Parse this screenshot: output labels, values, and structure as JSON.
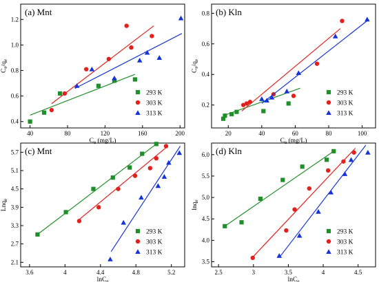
{
  "chart_data": [
    {
      "type": "scatter",
      "title": "(a) Mnt",
      "xlabel": "Ce (mg/L)",
      "ylabel": "Ce/qe",
      "xlim": [
        30,
        205
      ],
      "ylim": [
        0.35,
        1.32
      ],
      "xticks": [
        40,
        80,
        120,
        160,
        200
      ],
      "yticks": [
        0.4,
        0.6,
        0.8,
        1.0,
        1.2
      ],
      "ytick_format": "1",
      "legend_position": "bottom-right",
      "series": [
        {
          "name": "293 K",
          "color": "#1f8f2a",
          "marker": "square",
          "points": [
            [
              40,
              0.4
            ],
            [
              55,
              0.47
            ],
            [
              72,
              0.62
            ],
            [
              113,
              0.68
            ],
            [
              130,
              0.72
            ],
            [
              152,
              0.73
            ]
          ],
          "fit": [
            [
              40,
              0.45
            ],
            [
              152,
              0.77
            ]
          ]
        },
        {
          "name": "303 K",
          "color": "#e2211c",
          "marker": "circle",
          "points": [
            [
              63,
              0.49
            ],
            [
              77,
              0.62
            ],
            [
              100,
              0.81
            ],
            [
              124,
              0.89
            ],
            [
              143,
              1.15
            ],
            [
              148,
              0.98
            ],
            [
              170,
              1.07
            ]
          ],
          "fit": [
            [
              63,
              0.54
            ],
            [
              172,
              1.15
            ]
          ]
        },
        {
          "name": "313 K",
          "color": "#1533d8",
          "marker": "triangle",
          "points": [
            [
              90,
              0.68
            ],
            [
              106,
              0.81
            ],
            [
              130,
              0.74
            ],
            [
              157,
              0.88
            ],
            [
              165,
              0.94
            ],
            [
              178,
              0.9
            ],
            [
              201,
              1.21
            ]
          ],
          "fit": [
            [
              88,
              0.66
            ],
            [
              202,
              1.09
            ]
          ]
        }
      ]
    },
    {
      "type": "scatter",
      "title": "(b) Kln",
      "xlabel": "Ce (mg/L)",
      "ylabel": "Ce/qe",
      "xlim": [
        10,
        108
      ],
      "ylim": [
        0.05,
        0.86
      ],
      "xticks": [
        20,
        40,
        60,
        80,
        100
      ],
      "yticks": [
        0.2,
        0.4,
        0.6,
        0.8
      ],
      "ytick_format": "1",
      "legend_position": "bottom-right",
      "series": [
        {
          "name": "293 K",
          "color": "#1f8f2a",
          "marker": "square",
          "points": [
            [
              17,
              0.11
            ],
            [
              18,
              0.13
            ],
            [
              22,
              0.14
            ],
            [
              25,
              0.155
            ],
            [
              41,
              0.16
            ],
            [
              56,
              0.21
            ]
          ],
          "fit": [
            [
              17,
              0.13
            ],
            [
              63,
              0.31
            ]
          ]
        },
        {
          "name": "303 K",
          "color": "#e2211c",
          "marker": "circle",
          "points": [
            [
              29,
              0.2
            ],
            [
              31,
              0.21
            ],
            [
              33,
              0.22
            ],
            [
              47,
              0.27
            ],
            [
              59,
              0.26
            ],
            [
              73,
              0.47
            ],
            [
              88,
              0.75
            ]
          ],
          "fit": [
            [
              28,
              0.16
            ],
            [
              87,
              0.7
            ]
          ]
        },
        {
          "name": "313 K",
          "color": "#1533d8",
          "marker": "triangle",
          "points": [
            [
              40,
              0.24
            ],
            [
              43,
              0.23
            ],
            [
              46,
              0.25
            ],
            [
              55,
              0.29
            ],
            [
              62,
              0.41
            ],
            [
              84,
              0.65
            ],
            [
              103,
              0.76
            ]
          ],
          "fit": [
            [
              40,
              0.21
            ],
            [
              104,
              0.76
            ]
          ]
        }
      ]
    },
    {
      "type": "scatter",
      "title": "(c) Mnt",
      "xlabel": "lnCe",
      "ylabel": "Lnqe",
      "xlim": [
        3.5,
        5.35
      ],
      "ylim": [
        1.95,
        6.0
      ],
      "xticks": [
        3.6,
        4.0,
        4.4,
        4.8,
        5.2
      ],
      "yticks": [
        2.1,
        2.7,
        3.3,
        3.9,
        4.5,
        5.1,
        5.7
      ],
      "ytick_format": "1",
      "legend_position": "bottom-right",
      "series": [
        {
          "name": "293 K",
          "color": "#1f8f2a",
          "marker": "square",
          "points": [
            [
              3.69,
              3.01
            ],
            [
              4.01,
              3.74
            ],
            [
              4.32,
              4.5
            ],
            [
              4.54,
              4.87
            ],
            [
              4.73,
              5.2
            ],
            [
              4.87,
              5.65
            ],
            [
              5.03,
              5.97
            ]
          ],
          "fit": [
            [
              3.69,
              3.01
            ],
            [
              5.03,
              5.97
            ]
          ]
        },
        {
          "name": "303 K",
          "color": "#e2211c",
          "marker": "circle",
          "points": [
            [
              4.16,
              3.45
            ],
            [
              4.38,
              3.9
            ],
            [
              4.6,
              4.5
            ],
            [
              4.79,
              4.93
            ],
            [
              4.96,
              5.18
            ],
            [
              5.03,
              5.5
            ],
            [
              5.14,
              5.9
            ]
          ],
          "fit": [
            [
              4.14,
              3.45
            ],
            [
              5.16,
              5.9
            ]
          ]
        },
        {
          "name": "313 K",
          "color": "#1533d8",
          "marker": "triangle",
          "points": [
            [
              4.51,
              2.2
            ],
            [
              4.66,
              3.4
            ],
            [
              4.86,
              4.22
            ],
            [
              5.05,
              4.6
            ],
            [
              5.12,
              4.9
            ],
            [
              5.17,
              5.36
            ],
            [
              5.29,
              5.68
            ]
          ],
          "fit": [
            [
              4.52,
              2.45
            ],
            [
              5.3,
              5.9
            ]
          ]
        }
      ]
    },
    {
      "type": "scatter",
      "title": "(d) Kln",
      "xlabel": "lnCe",
      "ylabel": "lnqe",
      "xlim": [
        2.4,
        4.75
      ],
      "ylim": [
        3.38,
        6.27
      ],
      "xticks": [
        2.5,
        3.0,
        3.5,
        4.0,
        4.5
      ],
      "yticks": [
        3.5,
        4.0,
        4.5,
        5.0,
        5.5,
        6.0
      ],
      "ytick_format": "1",
      "legend_position": "bottom-right",
      "series": [
        {
          "name": "293 K",
          "color": "#1f8f2a",
          "marker": "square",
          "points": [
            [
              2.59,
              4.33
            ],
            [
              2.83,
              4.42
            ],
            [
              3.1,
              4.97
            ],
            [
              3.42,
              5.41
            ],
            [
              3.7,
              5.72
            ],
            [
              4.05,
              5.88
            ],
            [
              4.15,
              6.08
            ]
          ],
          "fit": [
            [
              2.59,
              4.33
            ],
            [
              4.15,
              6.08
            ]
          ]
        },
        {
          "name": "303 K",
          "color": "#e2211c",
          "marker": "circle",
          "points": [
            [
              2.99,
              3.59
            ],
            [
              3.47,
              4.23
            ],
            [
              3.59,
              4.72
            ],
            [
              3.8,
              5.21
            ],
            [
              4.07,
              5.63
            ],
            [
              4.29,
              5.84
            ],
            [
              4.44,
              6.05
            ]
          ],
          "fit": [
            [
              2.98,
              3.59
            ],
            [
              4.46,
              6.15
            ]
          ]
        },
        {
          "name": "313 K",
          "color": "#1533d8",
          "marker": "triangle",
          "points": [
            [
              3.37,
              3.64
            ],
            [
              3.66,
              4.11
            ],
            [
              3.93,
              4.67
            ],
            [
              4.11,
              5.12
            ],
            [
              4.31,
              5.55
            ],
            [
              4.4,
              5.88
            ],
            [
              4.64,
              6.05
            ]
          ],
          "fit": [
            [
              3.39,
              3.64
            ],
            [
              4.61,
              6.22
            ]
          ]
        }
      ]
    }
  ]
}
